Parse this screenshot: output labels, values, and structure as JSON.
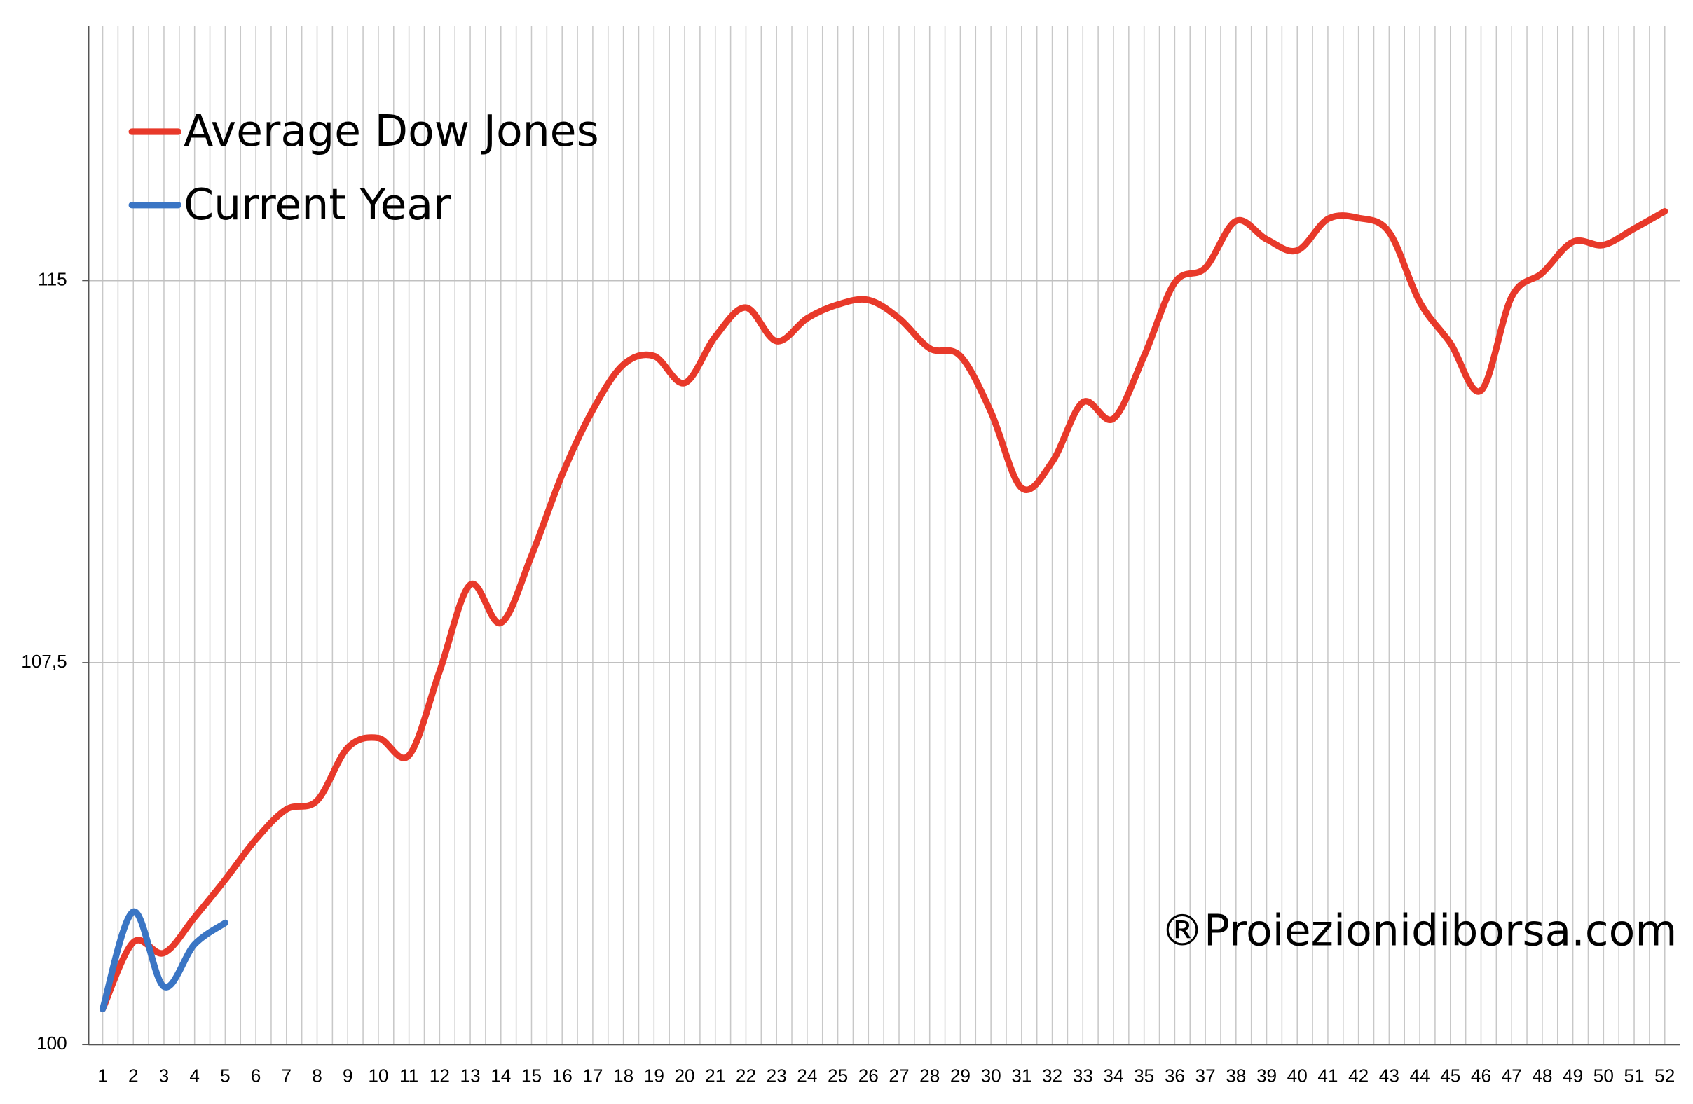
{
  "chart_data": {
    "type": "line",
    "categories": [
      "1",
      "2",
      "3",
      "4",
      "5",
      "6",
      "7",
      "8",
      "9",
      "10",
      "11",
      "12",
      "13",
      "14",
      "15",
      "16",
      "17",
      "18",
      "19",
      "20",
      "21",
      "22",
      "23",
      "24",
      "25",
      "26",
      "27",
      "28",
      "29",
      "30",
      "31",
      "32",
      "33",
      "34",
      "35",
      "36",
      "37",
      "38",
      "39",
      "40",
      "41",
      "42",
      "43",
      "44",
      "45",
      "46",
      "47",
      "48",
      "49",
      "50",
      "51",
      "52"
    ],
    "series": [
      {
        "name": "Average Dow Jones",
        "color": "#e8392a",
        "values": [
          100.7,
          102.01,
          101.8,
          102.5,
          103.24,
          104.03,
          104.62,
          104.79,
          105.83,
          106.02,
          105.68,
          107.33,
          109.03,
          108.28,
          109.6,
          111.19,
          112.46,
          113.35,
          113.52,
          112.99,
          113.9,
          114.47,
          113.81,
          114.26,
          114.53,
          114.62,
          114.26,
          113.67,
          113.52,
          112.42,
          110.93,
          111.44,
          112.61,
          112.29,
          113.52,
          114.96,
          115.25,
          116.17,
          115.81,
          115.59,
          116.21,
          116.23,
          115.95,
          114.58,
          113.77,
          112.84,
          114.68,
          115.15,
          115.76,
          115.7,
          116.02,
          116.36
        ]
      },
      {
        "name": "Current Year",
        "color": "#3a75c4",
        "values": [
          100.7,
          102.61,
          101.14,
          101.97,
          102.39,
          null,
          null,
          null,
          null,
          null,
          null,
          null,
          null,
          null,
          null,
          null,
          null,
          null,
          null,
          null,
          null,
          null,
          null,
          null,
          null,
          null,
          null,
          null,
          null,
          null,
          null,
          null,
          null,
          null,
          null,
          null,
          null,
          null,
          null,
          null,
          null,
          null,
          null,
          null,
          null,
          null,
          null,
          null,
          null,
          null,
          null,
          null
        ]
      }
    ],
    "ylim": [
      100,
      120
    ],
    "yticks": [
      100,
      {
        "value": 107.5,
        "label": "107,5"
      },
      115
    ],
    "grid": true,
    "legend": "top-left",
    "annotation": "®Proiezionidiborsa.com"
  }
}
